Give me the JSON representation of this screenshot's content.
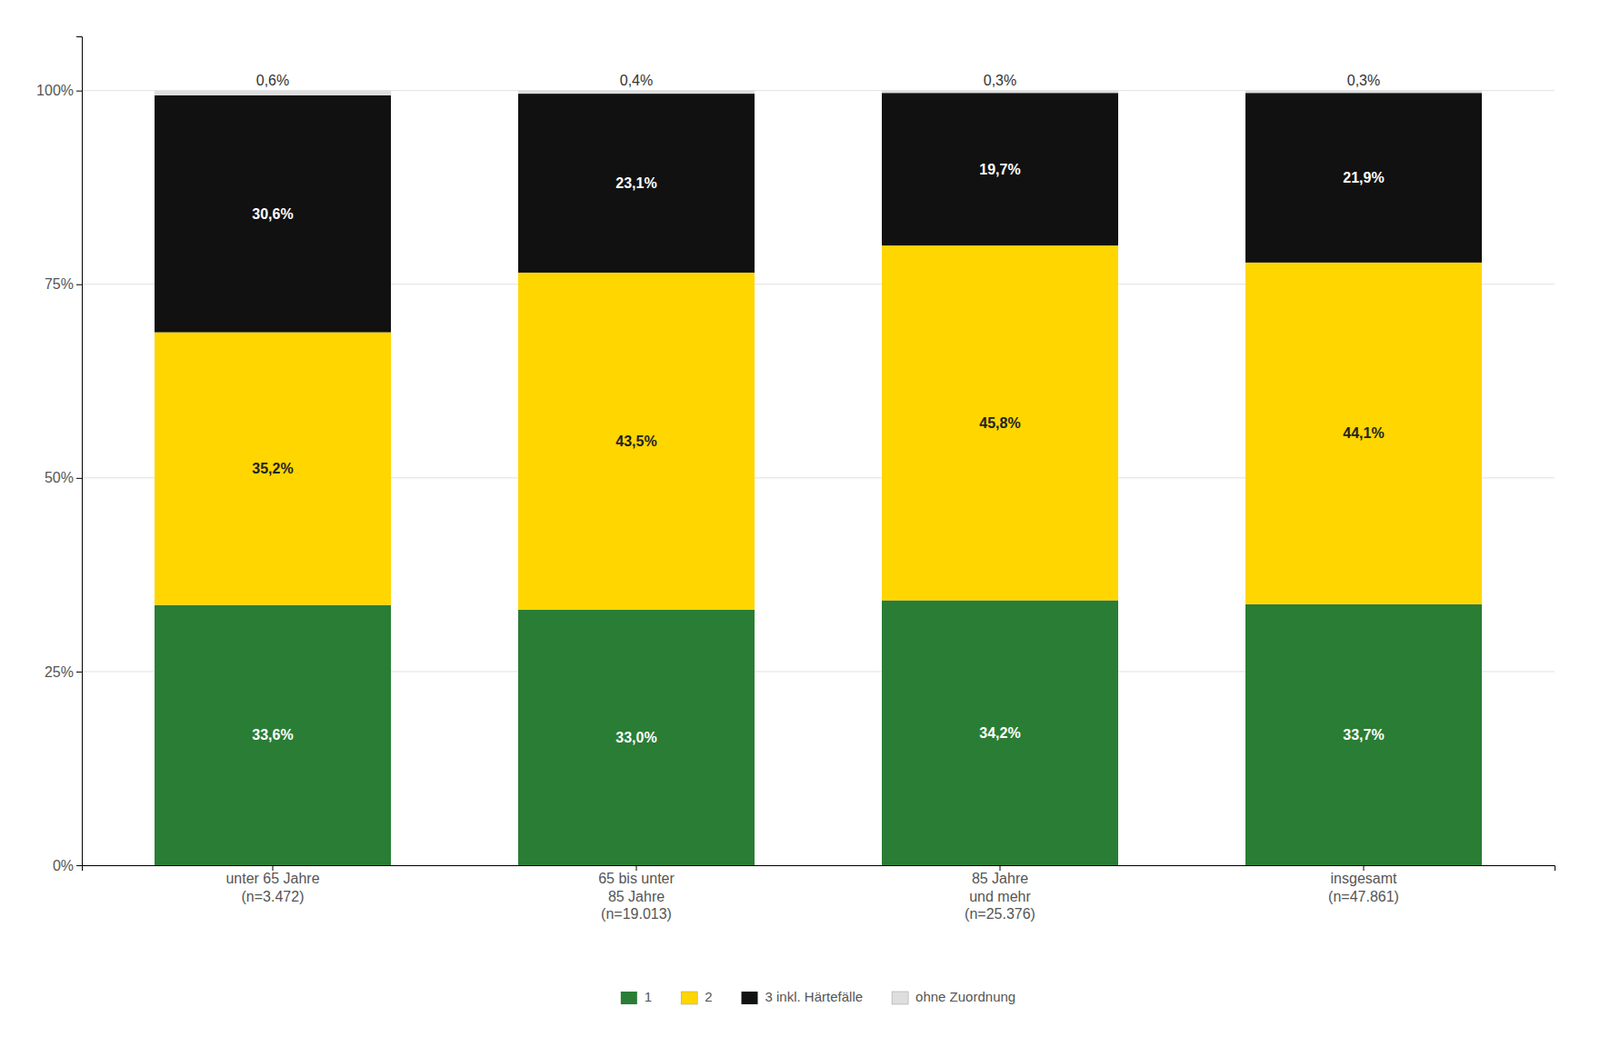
{
  "chart_data": {
    "type": "bar",
    "stacked": true,
    "categories": [
      "unter 65 Jahre\n(n=3.472)",
      "65 bis unter\n85 Jahre\n(n=19.013)",
      "85 Jahre\nund mehr\n(n=25.376)",
      "insgesamt\n(n=47.861)"
    ],
    "series": [
      {
        "name": "1",
        "color": "#2A7D34",
        "values": [
          33.6,
          33.0,
          34.2,
          33.7
        ],
        "value_labels": [
          "33,6%",
          "33,0%",
          "34,2%",
          "33,7%"
        ]
      },
      {
        "name": "2",
        "color": "#FFD600",
        "values": [
          35.2,
          43.5,
          45.8,
          44.1
        ],
        "value_labels": [
          "35,2%",
          "43,5%",
          "45,8%",
          "44,1%"
        ]
      },
      {
        "name": "3 inkl. Härtefälle",
        "color": "#111111",
        "values": [
          30.6,
          23.1,
          19.7,
          21.9
        ],
        "value_labels": [
          "30,6%",
          "23,1%",
          "19,7%",
          "21,9%"
        ]
      },
      {
        "name": "ohne Zuordnung",
        "color": "#DEDEDE",
        "values": [
          0.6,
          0.4,
          0.3,
          0.3
        ],
        "value_labels": [
          "0,6%",
          "0,4%",
          "0,3%",
          "0,3%"
        ]
      }
    ],
    "ylim": [
      0,
      107
    ],
    "yticks": [
      {
        "value": 0,
        "label": "0%"
      },
      {
        "value": 25,
        "label": "25%"
      },
      {
        "value": 50,
        "label": "50%"
      },
      {
        "value": 75,
        "label": "75%"
      },
      {
        "value": 100,
        "label": "100%"
      }
    ],
    "grid": true,
    "legend": "bottom",
    "data_labels": true
  }
}
